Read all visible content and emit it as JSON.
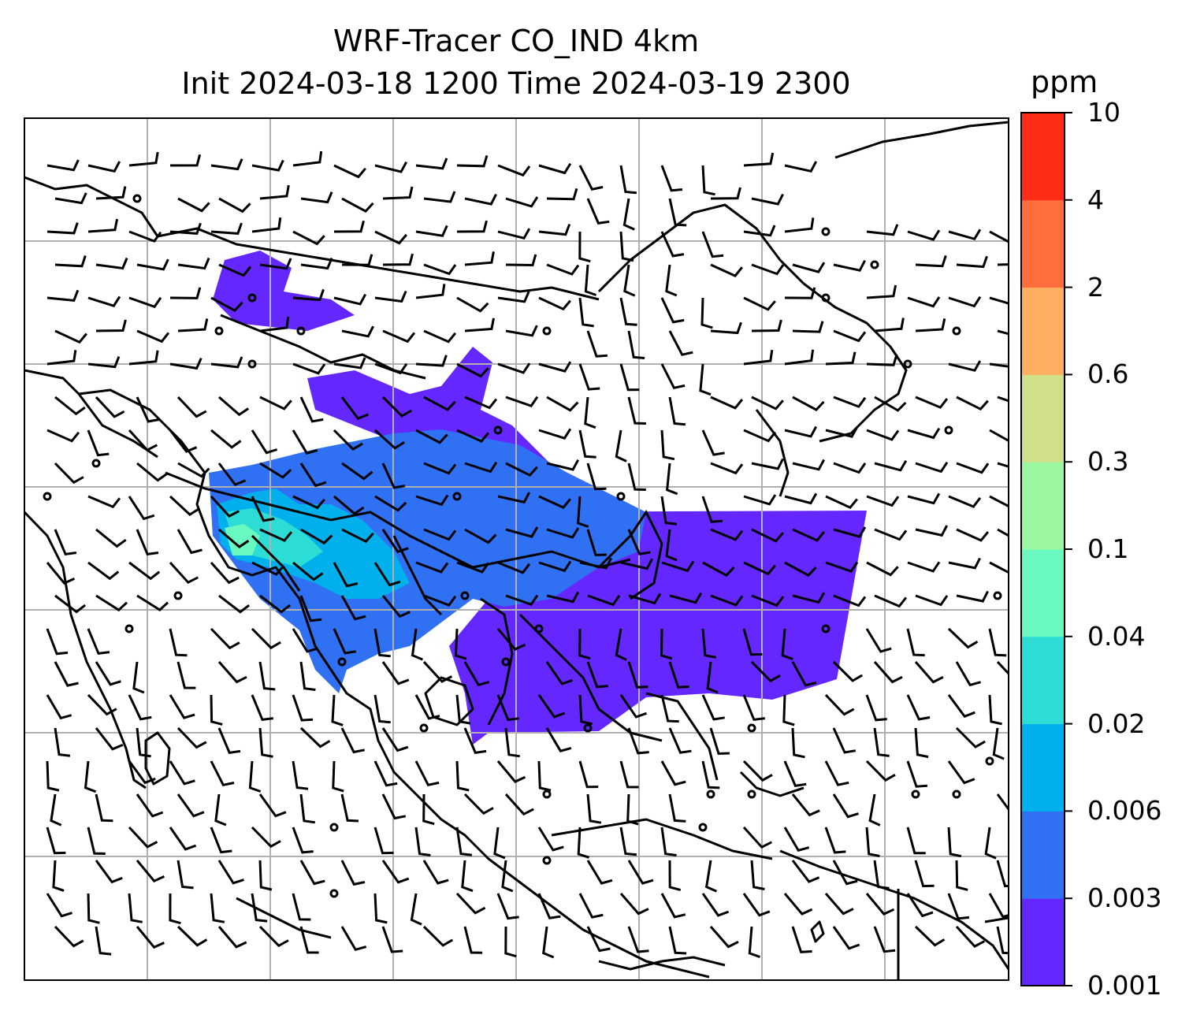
{
  "title": {
    "line1": "WRF-Tracer CO_IND 4km",
    "line2": "Init 2024-03-18 1200 Time 2024-03-19 2300"
  },
  "colorbar": {
    "unit": "ppm",
    "ticks": [
      "0.001",
      "0.003",
      "0.006",
      "0.02",
      "0.04",
      "0.1",
      "0.3",
      "0.6",
      "2",
      "4",
      "10"
    ],
    "colors": [
      "#6428ff",
      "#3070f2",
      "#00b0ec",
      "#2edcd6",
      "#68f8c0",
      "#9cf8a0",
      "#d0e088",
      "#feae60",
      "#fe6e3c",
      "#ff2c18"
    ]
  },
  "map": {
    "field": "CO_IND concentration",
    "overlays": [
      "coastlines",
      "country borders",
      "wind barbs",
      "lat/lon grid"
    ],
    "grid": true
  }
}
